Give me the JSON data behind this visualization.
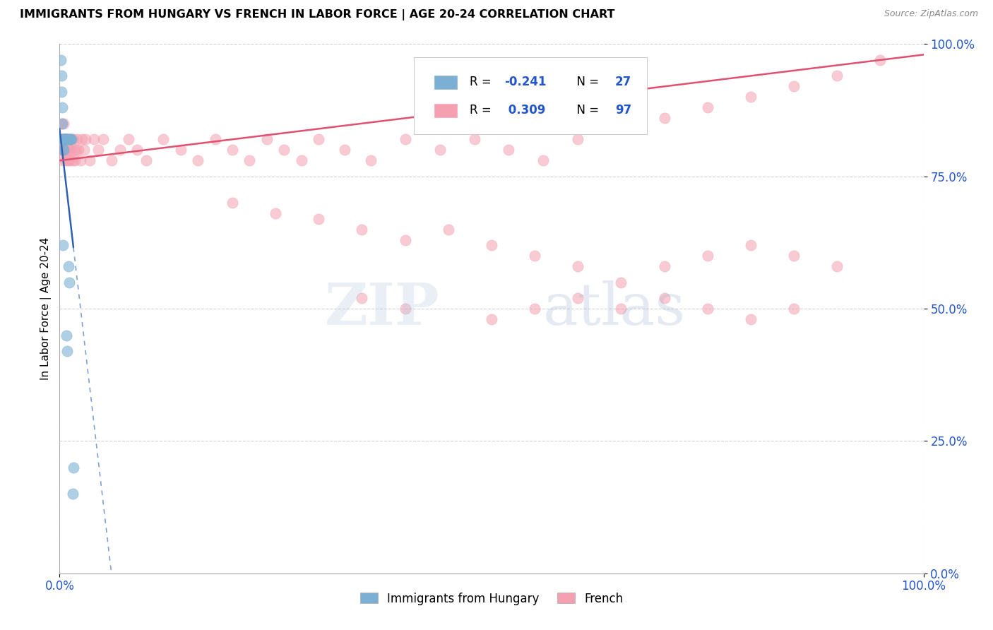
{
  "title": "IMMIGRANTS FROM HUNGARY VS FRENCH IN LABOR FORCE | AGE 20-24 CORRELATION CHART",
  "source": "Source: ZipAtlas.com",
  "ylabel": "In Labor Force | Age 20-24",
  "legend_blue_label": "Immigrants from Hungary",
  "legend_pink_label": "French",
  "R_blue": -0.241,
  "N_blue": 27,
  "R_pink": 0.309,
  "N_pink": 97,
  "blue_color": "#7BAFD4",
  "pink_color": "#F4A0B0",
  "blue_line_color": "#3060B0",
  "pink_line_color": "#E05070",
  "blue_scatter_x": [
    0.001,
    0.002,
    0.002,
    0.003,
    0.003,
    0.004,
    0.004,
    0.004,
    0.005,
    0.005,
    0.005,
    0.006,
    0.006,
    0.007,
    0.007,
    0.008,
    0.008,
    0.009,
    0.009,
    0.01,
    0.01,
    0.011,
    0.012,
    0.013,
    0.014,
    0.015,
    0.016
  ],
  "blue_scatter_y": [
    0.97,
    0.94,
    0.91,
    0.88,
    0.85,
    0.82,
    0.8,
    0.62,
    0.82,
    0.8,
    0.82,
    0.82,
    0.82,
    0.82,
    0.82,
    0.82,
    0.45,
    0.42,
    0.82,
    0.82,
    0.58,
    0.55,
    0.82,
    0.82,
    0.82,
    0.15,
    0.2
  ],
  "pink_scatter_x": [
    0.001,
    0.001,
    0.002,
    0.002,
    0.003,
    0.003,
    0.003,
    0.004,
    0.004,
    0.005,
    0.005,
    0.006,
    0.006,
    0.006,
    0.007,
    0.007,
    0.008,
    0.008,
    0.009,
    0.009,
    0.01,
    0.01,
    0.011,
    0.011,
    0.012,
    0.013,
    0.014,
    0.015,
    0.016,
    0.017,
    0.018,
    0.019,
    0.02,
    0.022,
    0.024,
    0.026,
    0.028,
    0.03,
    0.035,
    0.04,
    0.045,
    0.05,
    0.06,
    0.07,
    0.08,
    0.09,
    0.1,
    0.12,
    0.14,
    0.16,
    0.18,
    0.2,
    0.22,
    0.24,
    0.26,
    0.28,
    0.3,
    0.33,
    0.36,
    0.4,
    0.44,
    0.48,
    0.52,
    0.56,
    0.6,
    0.65,
    0.7,
    0.75,
    0.8,
    0.85,
    0.9,
    0.95,
    0.2,
    0.25,
    0.3,
    0.35,
    0.4,
    0.45,
    0.5,
    0.55,
    0.6,
    0.65,
    0.7,
    0.75,
    0.8,
    0.85,
    0.9,
    0.35,
    0.4,
    0.5,
    0.55,
    0.6,
    0.65,
    0.7,
    0.75,
    0.8,
    0.85
  ],
  "pink_scatter_y": [
    0.82,
    0.8,
    0.85,
    0.82,
    0.82,
    0.8,
    0.78,
    0.82,
    0.8,
    0.82,
    0.85,
    0.8,
    0.82,
    0.78,
    0.82,
    0.8,
    0.82,
    0.78,
    0.8,
    0.82,
    0.82,
    0.78,
    0.8,
    0.82,
    0.78,
    0.8,
    0.82,
    0.78,
    0.82,
    0.8,
    0.78,
    0.8,
    0.82,
    0.8,
    0.78,
    0.82,
    0.8,
    0.82,
    0.78,
    0.82,
    0.8,
    0.82,
    0.78,
    0.8,
    0.82,
    0.8,
    0.78,
    0.82,
    0.8,
    0.78,
    0.82,
    0.8,
    0.78,
    0.82,
    0.8,
    0.78,
    0.82,
    0.8,
    0.78,
    0.82,
    0.8,
    0.82,
    0.8,
    0.78,
    0.82,
    0.84,
    0.86,
    0.88,
    0.9,
    0.92,
    0.94,
    0.97,
    0.7,
    0.68,
    0.67,
    0.65,
    0.63,
    0.65,
    0.62,
    0.6,
    0.58,
    0.55,
    0.58,
    0.6,
    0.62,
    0.6,
    0.58,
    0.52,
    0.5,
    0.48,
    0.5,
    0.52,
    0.5,
    0.52,
    0.5,
    0.48,
    0.5
  ],
  "blue_line_x0": 0.0,
  "blue_line_y0": 0.84,
  "blue_line_slope": -14.0,
  "blue_line_solid_end": 0.016,
  "blue_line_dash_end": 0.25,
  "pink_line_x0": 0.0,
  "pink_line_y0": 0.78,
  "pink_line_slope": 0.2,
  "xlim": [
    0.0,
    1.0
  ],
  "ylim": [
    0.0,
    1.0
  ],
  "ytick_vals": [
    0.0,
    0.25,
    0.5,
    0.75,
    1.0
  ],
  "ytick_labels": [
    "0.0%",
    "25.0%",
    "50.0%",
    "75.0%",
    "100.0%"
  ],
  "xtick_vals": [
    0.0,
    1.0
  ],
  "xtick_labels": [
    "0.0%",
    "100.0%"
  ]
}
